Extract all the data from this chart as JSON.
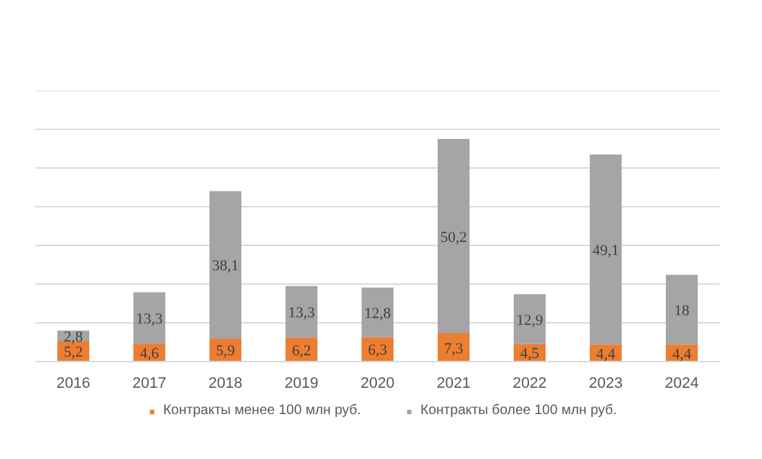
{
  "chart_data": {
    "type": "bar",
    "stacked": true,
    "categories": [
      "2016",
      "2017",
      "2018",
      "2019",
      "2020",
      "2021",
      "2022",
      "2023",
      "2024"
    ],
    "series": [
      {
        "name": "Контракты менее 100 млн руб.",
        "color": "#ed7d31",
        "values": [
          5.2,
          4.6,
          5.9,
          6.2,
          6.3,
          7.3,
          4.5,
          4.4,
          4.4
        ],
        "value_labels": [
          "5,2",
          "4,6",
          "5,9",
          "6,2",
          "6,3",
          "7,3",
          "4,5",
          "4,4",
          "4,4"
        ]
      },
      {
        "name": "Контракты более 100 млн руб.",
        "color": "#a5a5a5",
        "values": [
          2.8,
          13.3,
          38.1,
          13.3,
          12.8,
          50.2,
          12.9,
          49.1,
          18
        ],
        "value_labels": [
          "2,8",
          "13,3",
          "38,1",
          "13,3",
          "12,8",
          "50,2",
          "12,9",
          "49,1",
          "18"
        ]
      }
    ],
    "ylim": [
      0,
      70
    ],
    "yticks": [
      {
        "value": 0,
        "label": null
      },
      {
        "value": 10,
        "label": null
      },
      {
        "value": 20,
        "label": null
      },
      {
        "value": 30,
        "label": null
      },
      {
        "value": 40,
        "label": null
      },
      {
        "value": 50,
        "label": null
      },
      {
        "value": 60,
        "label": null
      },
      {
        "value": 70,
        "label": null
      }
    ],
    "tick_labels": "x",
    "grid": "y",
    "legend": "bottom"
  }
}
